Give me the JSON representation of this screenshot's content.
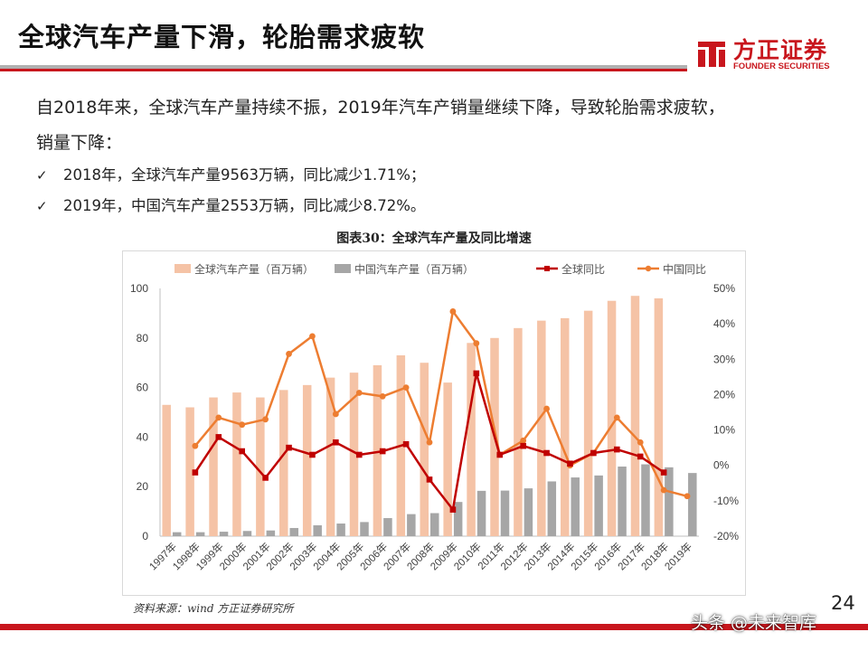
{
  "header": {
    "title": "全球汽车产量下滑，轮胎需求疲软",
    "logo_cn": "方正证券",
    "logo_en": "FOUNDER SECURITIES"
  },
  "intro": {
    "line1": "自2018年来，全球汽车产量持续不振，2019年汽车产销量继续下降，导致轮胎需求疲软，",
    "line2": "销量下降："
  },
  "bullets": [
    "2018年，全球汽车产量9563万辆，同比减少1.71%；",
    "2019年，中国汽车产量2553万辆，同比减少8.72%。"
  ],
  "colors": {
    "global_bar": "#f5c3a6",
    "china_bar": "#a6a6a6",
    "global_line": "#c00000",
    "china_line": "#ed7d31",
    "brand_red": "#c8161d"
  },
  "chart_data": {
    "type": "bar",
    "title": "图表30：全球汽车产量及同比增速",
    "categories": [
      "1997年",
      "1998年",
      "1999年",
      "2000年",
      "2001年",
      "2002年",
      "2003年",
      "2004年",
      "2005年",
      "2006年",
      "2007年",
      "2008年",
      "2009年",
      "2010年",
      "2011年",
      "2012年",
      "2013年",
      "2014年",
      "2015年",
      "2016年",
      "2017年",
      "2018年",
      "2019年"
    ],
    "legend": [
      "全球汽车产量（百万辆）",
      "中国汽车产量（百万辆）",
      "全球同比",
      "中国同比"
    ],
    "legend_position": "top",
    "series": [
      {
        "name": "全球汽车产量（百万辆）",
        "type": "bar",
        "axis": "left",
        "values": [
          53,
          52,
          56,
          58,
          56,
          59,
          61,
          64,
          66,
          69,
          73,
          70,
          62,
          78,
          80,
          84,
          87,
          88,
          91,
          95,
          97,
          96,
          null
        ]
      },
      {
        "name": "中国汽车产量（百万辆）",
        "type": "bar",
        "axis": "left",
        "values": [
          1.6,
          1.6,
          1.8,
          2.1,
          2.3,
          3.3,
          4.4,
          5.1,
          5.7,
          7.3,
          8.9,
          9.3,
          13.8,
          18.3,
          18.4,
          19.3,
          22.1,
          23.7,
          24.5,
          28.1,
          29.0,
          27.8,
          25.5
        ]
      },
      {
        "name": "全球同比",
        "type": "line",
        "axis": "right",
        "values": [
          null,
          -2,
          8,
          4,
          -3.5,
          5,
          3,
          6.5,
          3,
          4,
          6,
          -4,
          -12.5,
          26,
          3,
          5.5,
          3.5,
          0.5,
          3.5,
          4.5,
          2.5,
          -2,
          null
        ]
      },
      {
        "name": "中国同比",
        "type": "line",
        "axis": "right",
        "values": [
          null,
          5.5,
          13.5,
          11.5,
          13,
          31.5,
          36.5,
          14.5,
          20.5,
          19.5,
          22,
          6.5,
          43.5,
          34.5,
          3,
          7,
          16,
          0,
          3.5,
          13.5,
          6.5,
          -7,
          -8.7
        ]
      }
    ],
    "left_axis": {
      "min": 0,
      "max": 100,
      "ticks": [
        0,
        20,
        40,
        60,
        80,
        100
      ]
    },
    "right_axis": {
      "min": -20,
      "max": 50,
      "ticks": [
        "-20%",
        "-10%",
        "0%",
        "10%",
        "20%",
        "30%",
        "40%",
        "50%"
      ]
    },
    "grid": false
  },
  "footer": {
    "source": "资料来源：wind 方正证券研究所",
    "page_number": "24",
    "watermark": "头条 @未来智库"
  }
}
